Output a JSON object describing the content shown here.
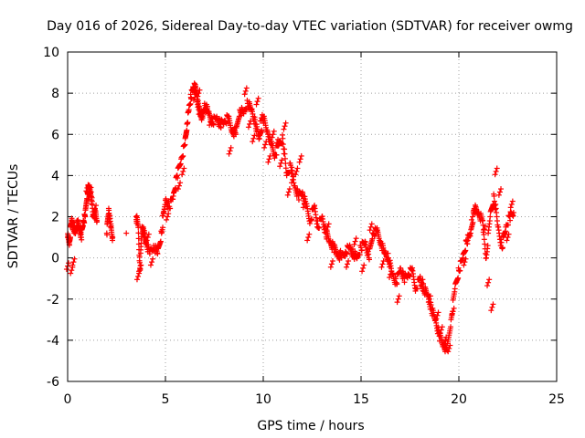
{
  "chart_data": {
    "type": "scatter",
    "title": "Day 016 of 2026, Sidereal Day-to-day VTEC variation (SDTVAR) for receiver owmg",
    "xlabel": "GPS time / hours",
    "ylabel": "SDTVAR / TECUs",
    "xlim": [
      0,
      25
    ],
    "ylim": [
      -6,
      10
    ],
    "xticks": [
      0,
      5,
      10,
      15,
      20,
      25
    ],
    "yticks": [
      -6,
      -4,
      -2,
      0,
      2,
      4,
      6,
      8,
      10
    ],
    "xtick_labels": [
      "0",
      "5",
      "10",
      "15",
      "20",
      "25"
    ],
    "ytick_labels": [
      "-6",
      "-4",
      "-2",
      "0",
      "2",
      "4",
      "6",
      "8",
      "10"
    ],
    "grid": true,
    "marker": "+",
    "color": "#ff0000",
    "series": [
      {
        "name": "SDTVAR",
        "x": [
          0.0,
          0.1,
          0.2,
          0.3,
          0.4,
          0.5,
          0.6,
          0.7,
          0.8,
          0.9,
          1.0,
          1.1,
          1.2,
          1.3,
          1.4,
          1.5,
          2.0,
          2.1,
          2.2,
          2.3,
          3.0,
          3.5,
          3.6,
          3.7,
          3.8,
          3.9,
          4.0,
          4.2,
          4.4,
          4.6,
          4.8,
          5.0,
          5.2,
          5.4,
          5.6,
          5.8,
          6.0,
          6.1,
          6.2,
          6.3,
          6.4,
          6.5,
          6.6,
          6.7,
          6.8,
          6.9,
          7.0,
          7.2,
          7.4,
          7.6,
          7.8,
          8.0,
          8.2,
          8.4,
          8.6,
          8.8,
          9.0,
          9.2,
          9.4,
          9.6,
          9.8,
          10.0,
          10.2,
          10.4,
          10.6,
          10.8,
          11.0,
          11.2,
          11.4,
          11.6,
          11.8,
          12.0,
          12.2,
          12.4,
          12.6,
          12.8,
          13.0,
          13.2,
          13.4,
          13.6,
          13.8,
          14.0,
          14.2,
          14.4,
          14.6,
          14.8,
          15.0,
          15.2,
          15.4,
          15.6,
          15.8,
          16.0,
          16.2,
          16.4,
          16.6,
          16.8,
          17.0,
          17.2,
          17.4,
          17.6,
          17.8,
          18.0,
          18.2,
          18.4,
          18.6,
          18.8,
          19.0,
          19.2,
          19.4,
          19.6,
          19.8,
          20.0,
          20.2,
          20.4,
          20.6,
          20.8,
          21.0,
          21.2,
          21.4,
          21.6,
          21.8,
          22.0,
          22.2,
          22.4,
          22.6,
          22.8
        ],
        "y": [
          1.0,
          0.8,
          1.8,
          1.5,
          1.2,
          1.7,
          1.5,
          1.0,
          1.8,
          2.0,
          3.2,
          3.4,
          3.2,
          2.0,
          2.2,
          1.8,
          1.2,
          2.4,
          1.5,
          1.0,
          1.2,
          2.0,
          1.6,
          -0.6,
          1.5,
          1.2,
          0.8,
          0.2,
          0.6,
          0.2,
          1.2,
          2.8,
          2.5,
          3.0,
          4.0,
          4.8,
          5.5,
          6.5,
          7.2,
          7.8,
          8.2,
          8.3,
          8.0,
          7.2,
          7.0,
          6.8,
          7.5,
          7.0,
          6.6,
          6.8,
          6.5,
          6.6,
          6.8,
          6.2,
          6.0,
          7.2,
          7.0,
          7.5,
          7.2,
          6.5,
          5.8,
          6.8,
          6.2,
          5.5,
          5.0,
          5.5,
          5.8,
          4.0,
          4.5,
          3.5,
          3.0,
          3.2,
          2.5,
          1.8,
          2.5,
          1.5,
          2.0,
          1.2,
          0.8,
          0.5,
          0.2,
          0.0,
          0.3,
          0.5,
          0.2,
          0.0,
          0.5,
          0.8,
          0.0,
          1.2,
          1.3,
          0.8,
          0.2,
          0.0,
          -0.8,
          -1.2,
          -0.5,
          -1.0,
          -0.8,
          -0.6,
          -1.5,
          -1.0,
          -1.5,
          -1.8,
          -2.5,
          -3.0,
          -3.8,
          -4.2,
          -4.5,
          -3.0,
          -1.5,
          -0.6,
          0.0,
          0.8,
          1.2,
          2.4,
          2.2,
          1.8,
          0.0,
          2.0,
          3.0,
          1.5,
          0.5,
          1.5,
          2.0,
          2.2
        ],
        "x_extra": [
          0.0,
          0.2,
          0.3,
          1.0,
          1.1,
          1.4,
          3.6,
          3.7,
          4.1,
          4.3,
          4.9,
          5.1,
          5.7,
          5.9,
          6.5,
          6.7,
          7.1,
          7.3,
          8.3,
          8.5,
          9.1,
          9.3,
          9.5,
          9.7,
          9.9,
          10.1,
          10.3,
          10.5,
          10.7,
          10.9,
          11.1,
          11.3,
          11.5,
          11.7,
          11.9,
          12.1,
          12.3,
          13.3,
          13.5,
          13.9,
          14.3,
          14.7,
          15.1,
          15.5,
          16.1,
          16.5,
          16.9,
          18.1,
          18.5,
          18.9,
          19.1,
          19.3,
          19.5,
          19.7,
          20.3,
          20.5,
          20.7,
          21.3,
          21.5,
          21.7,
          21.9,
          22.1,
          22.5,
          22.7
        ],
        "y_extra": [
          -0.4,
          -0.6,
          -0.2,
          3.4,
          3.0,
          2.4,
          -0.9,
          -0.5,
          1.0,
          -0.2,
          2.2,
          2.0,
          3.5,
          4.2,
          7.8,
          8.0,
          7.2,
          6.6,
          5.2,
          6.2,
          8.1,
          6.5,
          5.8,
          7.6,
          6.8,
          5.5,
          4.8,
          6.0,
          5.6,
          4.6,
          6.4,
          3.2,
          3.8,
          4.2,
          4.8,
          2.6,
          1.0,
          1.5,
          -0.3,
          0.2,
          -0.3,
          0.8,
          -0.5,
          1.5,
          -0.3,
          -0.8,
          -2.0,
          -1.2,
          -2.0,
          -2.8,
          -3.5,
          -4.0,
          -4.4,
          -2.6,
          -0.2,
          1.0,
          2.0,
          1.4,
          -1.2,
          -2.4,
          4.2,
          3.2,
          1.0,
          2.6
        ]
      }
    ]
  }
}
